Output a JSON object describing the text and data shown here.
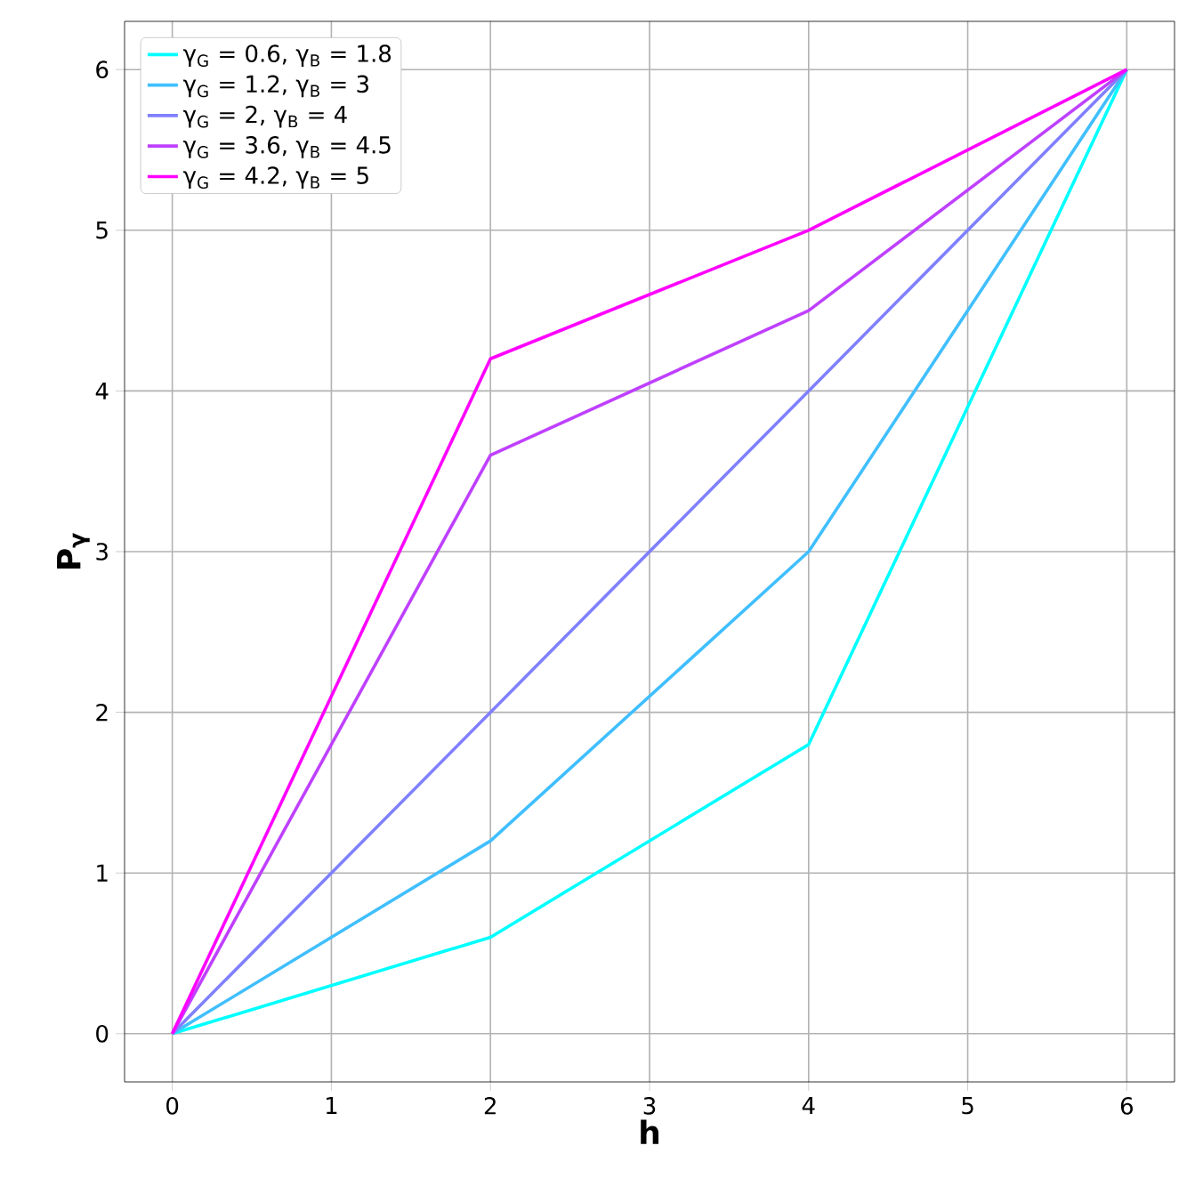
{
  "chart_data": {
    "type": "line",
    "xlabel": "h",
    "ylabel": "P$_{γ}$",
    "x": [
      0,
      2,
      4,
      6
    ],
    "series": [
      {
        "name": "γ$_{G}$ = 0.6, γ$_{B}$ = 1.8",
        "color": "#00ffff",
        "values": [
          0,
          0.6,
          1.8,
          6
        ]
      },
      {
        "name": "γ$_{G}$ = 1.2, γ$_{B}$ = 3",
        "color": "#40bfff",
        "values": [
          0,
          1.2,
          3,
          6
        ]
      },
      {
        "name": "γ$_{G}$ = 2, γ$_{B}$ = 4",
        "color": "#8080ff",
        "values": [
          0,
          2,
          4,
          6
        ]
      },
      {
        "name": "γ$_{G}$ = 3.6, γ$_{B}$ = 4.5",
        "color": "#bf40ff",
        "values": [
          0,
          3.6,
          4.5,
          6
        ]
      },
      {
        "name": "γ$_{G}$ = 4.2, γ$_{B}$ = 5",
        "color": "#ff00ff",
        "values": [
          0,
          4.2,
          5,
          6
        ]
      }
    ],
    "xlim": [
      -0.3,
      6.3
    ],
    "ylim": [
      -0.3,
      6.3
    ],
    "xticks": [
      0,
      1,
      2,
      3,
      4,
      5,
      6
    ],
    "yticks": [
      0,
      1,
      2,
      3,
      4,
      5,
      6
    ],
    "grid": true,
    "legend": "top left",
    "marker": "none",
    "line_style": "solid"
  }
}
